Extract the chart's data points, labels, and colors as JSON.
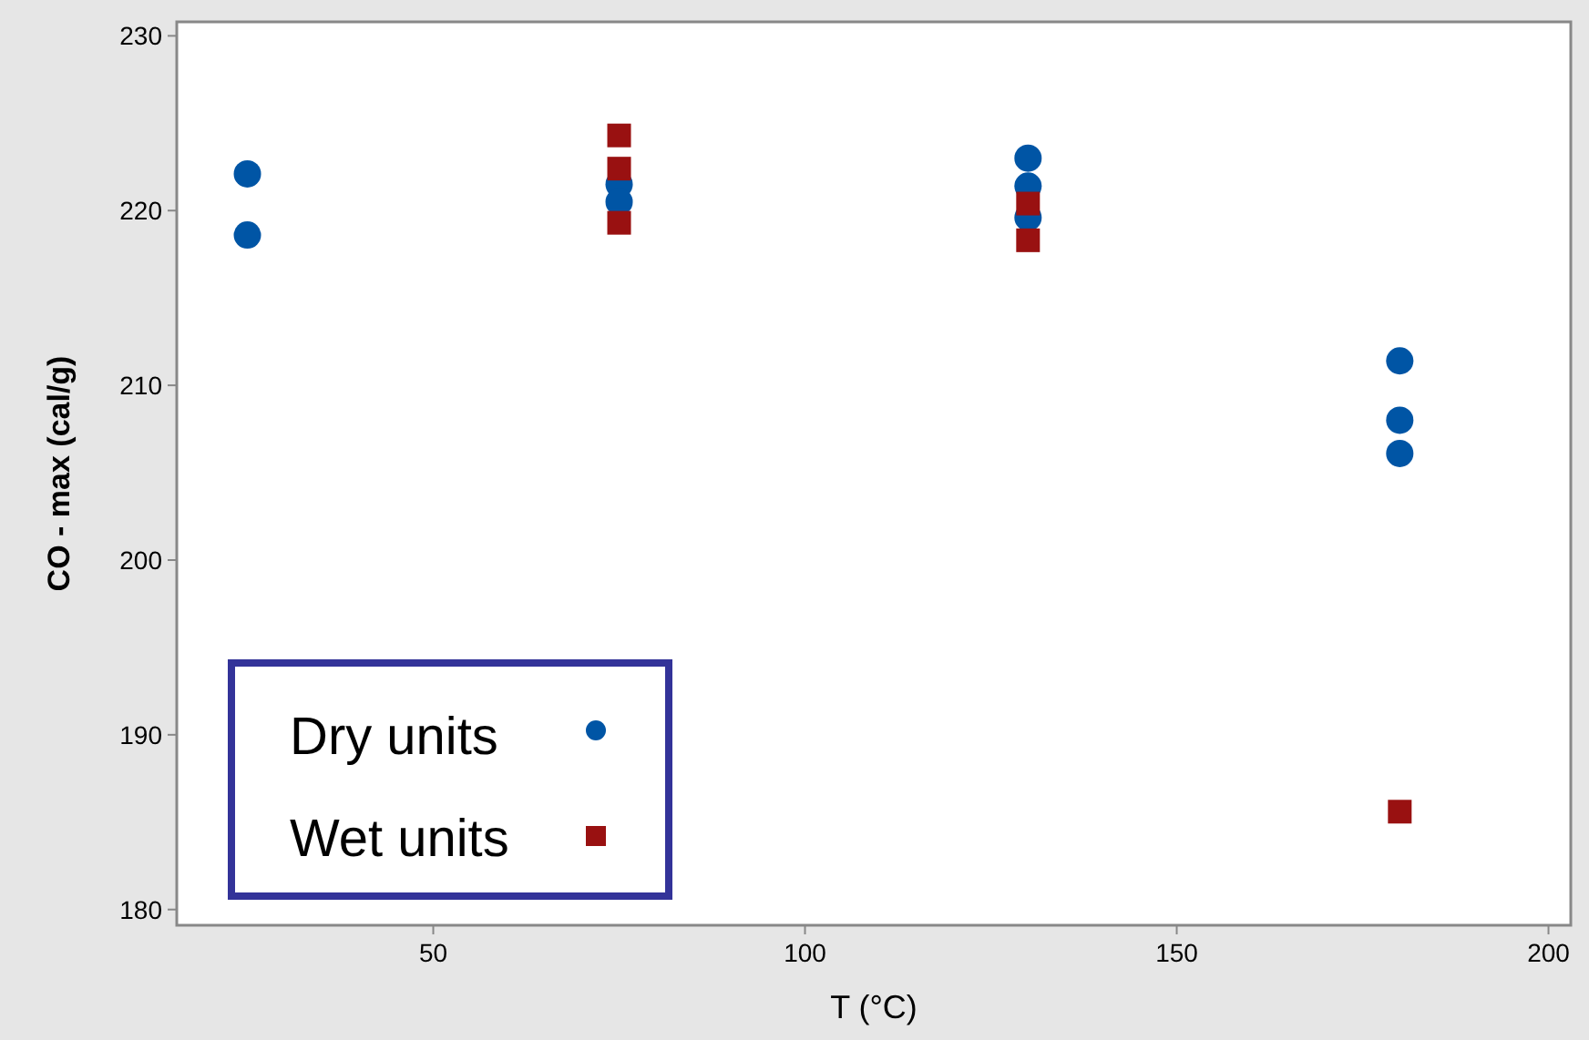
{
  "chart_data": {
    "type": "scatter",
    "xlabel": "T (°C)",
    "ylabel": "CO - max (cal/g)",
    "xlim": [
      15.5,
      203
    ],
    "ylim": [
      179.1,
      230.8
    ],
    "xticks": [
      50,
      100,
      150,
      200
    ],
    "yticks": [
      180,
      190,
      200,
      210,
      220,
      230
    ],
    "grid": false,
    "legend": "bottom left",
    "series": [
      {
        "name": "Dry units",
        "color": "#0055a5",
        "marker": "circle",
        "x": [
          25,
          25,
          75,
          75,
          130,
          130,
          130,
          180,
          180,
          180
        ],
        "values": [
          222.1,
          218.6,
          221.5,
          220.5,
          223.0,
          221.4,
          219.6,
          211.4,
          208.0,
          206.1
        ]
      },
      {
        "name": "Wet units",
        "color": "#991111",
        "marker": "square",
        "x": [
          75,
          75,
          75,
          130,
          130,
          180
        ],
        "values": [
          224.3,
          222.4,
          219.3,
          220.4,
          218.3,
          185.6
        ]
      }
    ]
  }
}
